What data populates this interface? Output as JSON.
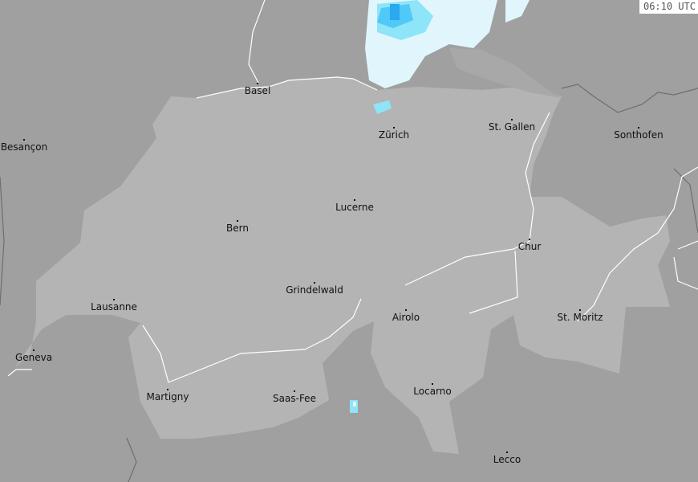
{
  "timestamp": "06:10 UTC",
  "colors": {
    "background": "#a0a0a0",
    "switzerland": "#b4b4b4",
    "border": "#6e6e6e",
    "river": "#ffffff",
    "precip_light": "#e0f6fc",
    "precip_medium": "#8ee4f8",
    "precip_strong": "#50c8f8",
    "precip_heavy": "#2aa8f0"
  },
  "cities": [
    {
      "name": "Basel"
    },
    {
      "name": "Besançon"
    },
    {
      "name": "Zürich"
    },
    {
      "name": "St. Gallen"
    },
    {
      "name": "Sonthofen"
    },
    {
      "name": "Lucerne"
    },
    {
      "name": "Bern"
    },
    {
      "name": "Chur"
    },
    {
      "name": "Grindelwald"
    },
    {
      "name": "Lausanne"
    },
    {
      "name": "Airolo"
    },
    {
      "name": "St. Moritz"
    },
    {
      "name": "Geneva"
    },
    {
      "name": "Martigny"
    },
    {
      "name": "Saas-Fee"
    },
    {
      "name": "Locarno"
    },
    {
      "name": "Lecco"
    }
  ]
}
